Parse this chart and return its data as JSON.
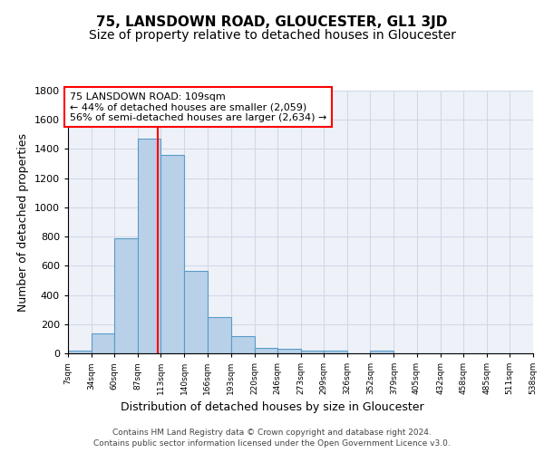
{
  "title": "75, LANSDOWN ROAD, GLOUCESTER, GL1 3JD",
  "subtitle": "Size of property relative to detached houses in Gloucester",
  "xlabel": "Distribution of detached houses by size in Gloucester",
  "ylabel": "Number of detached properties",
  "bin_edges": [
    7,
    34,
    60,
    87,
    113,
    140,
    166,
    193,
    220,
    246,
    273,
    299,
    326,
    352,
    379,
    405,
    432,
    458,
    485,
    511,
    538
  ],
  "bar_heights": [
    20,
    135,
    790,
    1470,
    1360,
    565,
    250,
    115,
    35,
    30,
    20,
    20,
    0,
    20,
    0,
    0,
    0,
    0,
    0,
    0
  ],
  "bar_color": "#b8d0e8",
  "bar_edge_color": "#5a9bc8",
  "red_line_x": 109,
  "annotation_text": "75 LANSDOWN ROAD: 109sqm\n← 44% of detached houses are smaller (2,059)\n56% of semi-detached houses are larger (2,634) →",
  "annotation_box_color": "white",
  "annotation_box_edge": "red",
  "ylim": [
    0,
    1800
  ],
  "yticks": [
    0,
    200,
    400,
    600,
    800,
    1000,
    1200,
    1400,
    1600,
    1800
  ],
  "tick_labels": [
    "7sqm",
    "34sqm",
    "60sqm",
    "87sqm",
    "113sqm",
    "140sqm",
    "166sqm",
    "193sqm",
    "220sqm",
    "246sqm",
    "273sqm",
    "299sqm",
    "326sqm",
    "352sqm",
    "379sqm",
    "405sqm",
    "432sqm",
    "458sqm",
    "485sqm",
    "511sqm",
    "538sqm"
  ],
  "grid_color": "#d0d8e8",
  "bg_color": "#eef2f8",
  "footer_line1": "Contains HM Land Registry data © Crown copyright and database right 2024.",
  "footer_line2": "Contains public sector information licensed under the Open Government Licence v3.0.",
  "title_fontsize": 11,
  "subtitle_fontsize": 10,
  "xlabel_fontsize": 9,
  "ylabel_fontsize": 9,
  "annotation_fontsize": 8
}
